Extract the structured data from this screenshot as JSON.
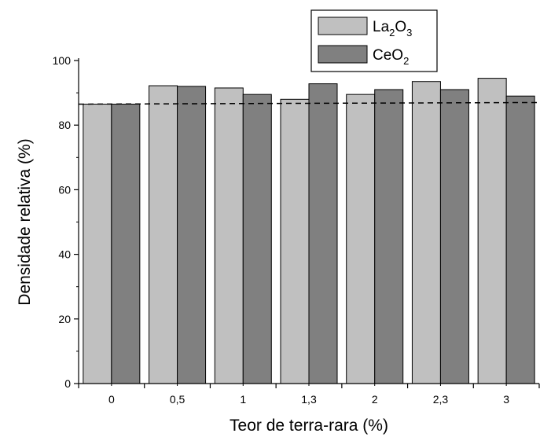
{
  "chart_data": {
    "type": "bar",
    "title": "",
    "xlabel": "Teor de terra-rara (%)",
    "ylabel": "Densidade relativa (%)",
    "categories": [
      "0",
      "0,5",
      "1",
      "1,3",
      "2",
      "2,3",
      "3"
    ],
    "series": [
      {
        "name": "La2O3",
        "values": [
          86.5,
          92.2,
          91.5,
          88.0,
          89.5,
          93.5,
          94.5
        ]
      },
      {
        "name": "CeO2",
        "values": [
          86.5,
          92.0,
          89.5,
          92.8,
          91.0,
          91.0,
          89.0
        ]
      }
    ],
    "reference_line": {
      "style": "dashed",
      "y_start": 86.5,
      "y_end": 87.0
    },
    "ylim": [
      0,
      100
    ],
    "yticks": [
      "0",
      "20",
      "40",
      "60",
      "80",
      "100"
    ],
    "grid": false,
    "legend": {
      "placement": "top-right",
      "entries": [
        {
          "parts": [
            [
              "La",
              false
            ],
            [
              "2",
              true
            ],
            [
              "O",
              false
            ],
            [
              "3",
              true
            ]
          ]
        },
        {
          "parts": [
            [
              "CeO",
              false
            ],
            [
              "2",
              true
            ]
          ]
        }
      ]
    },
    "colors": {
      "series0": "#c0c0c0",
      "series1": "#808080",
      "bar_stroke": "#000000",
      "axis": "#000000"
    }
  }
}
